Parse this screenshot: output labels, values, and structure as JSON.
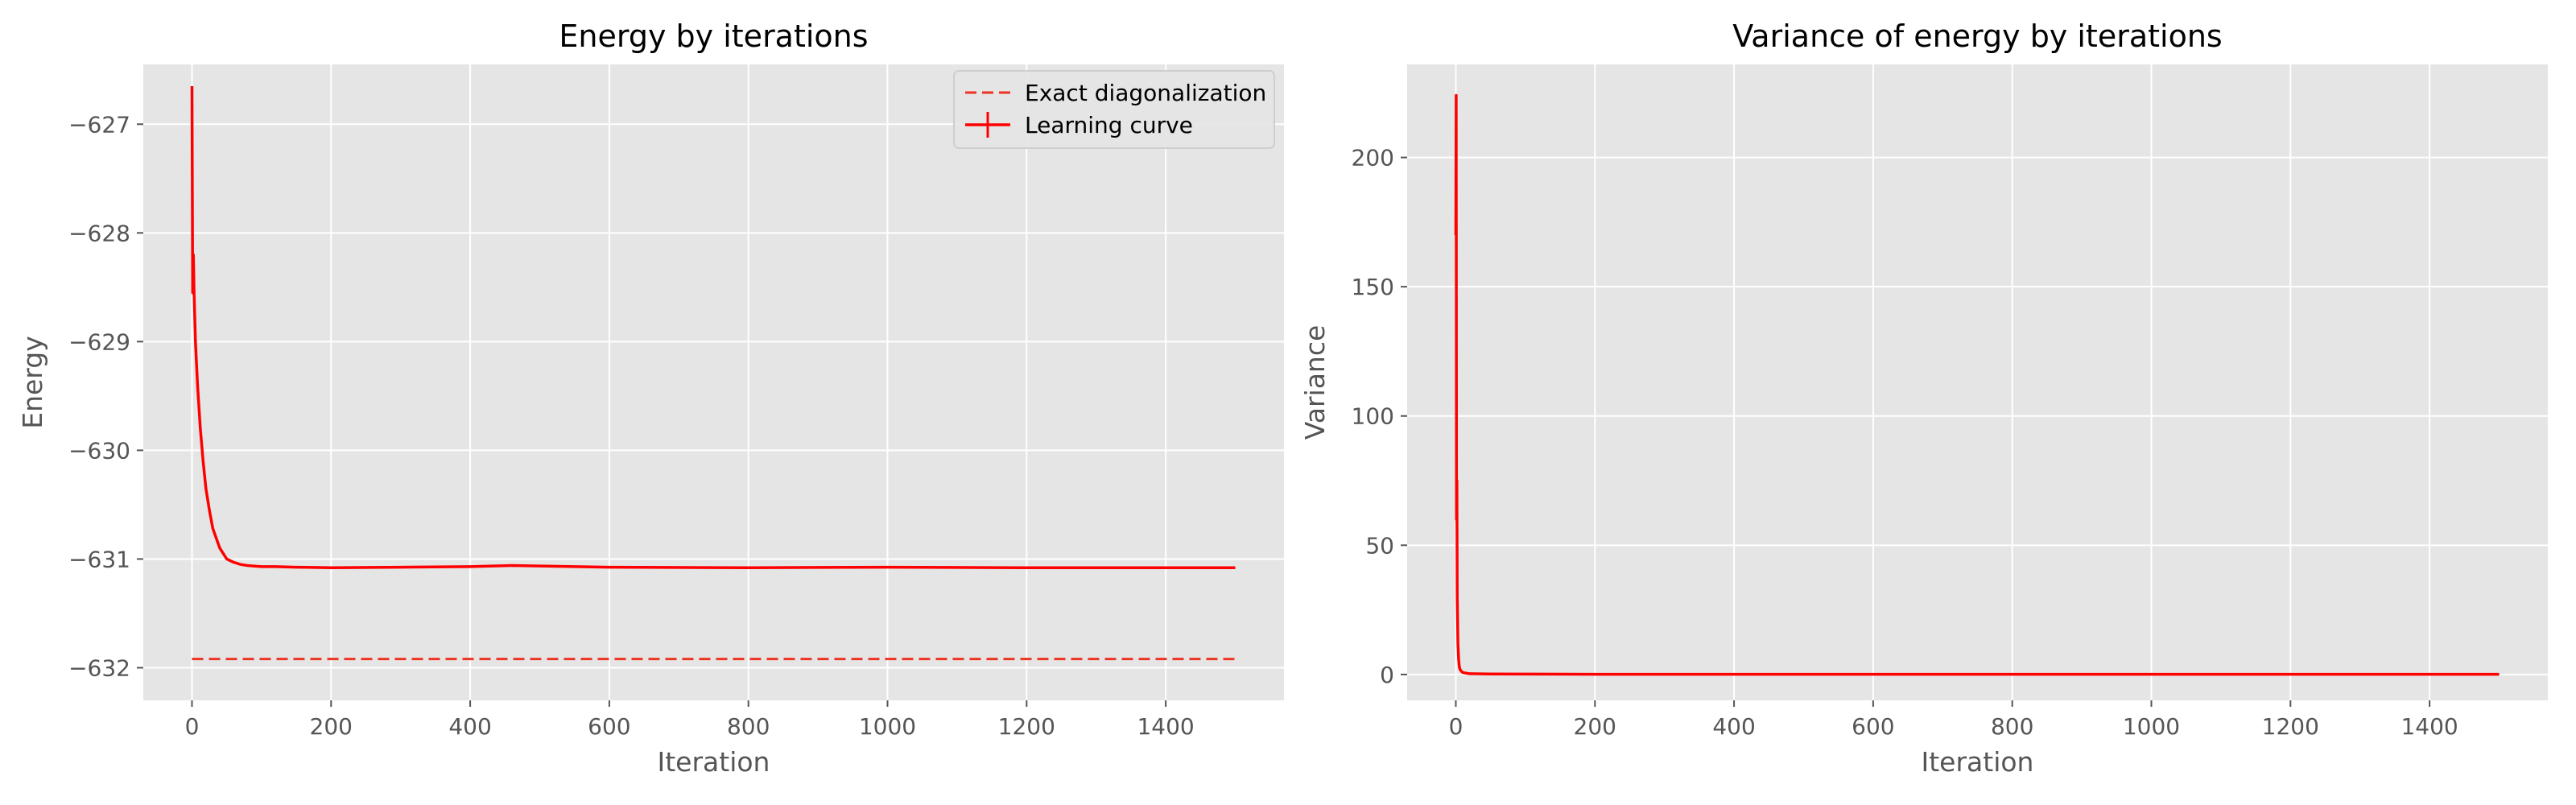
{
  "chart_data": [
    {
      "type": "line",
      "title": "Energy by iterations",
      "xlabel": "Iteration",
      "ylabel": "Energy",
      "xlim": [
        -70,
        1570
      ],
      "ylim": [
        -632.3,
        -626.45
      ],
      "xticks": [
        0,
        200,
        400,
        600,
        800,
        1000,
        1200,
        1400
      ],
      "yticks": [
        -632,
        -631,
        -630,
        -629,
        -628,
        -627
      ],
      "ytick_labels": [
        "−632",
        "−631",
        "−630",
        "−629",
        "−628",
        "−627"
      ],
      "grid": true,
      "legend": "top-right",
      "series": [
        {
          "name": "Exact diagonalization",
          "style": "dashed",
          "color": "#ee3322",
          "x": [
            0,
            1500
          ],
          "y": [
            -631.92,
            -631.92
          ]
        },
        {
          "name": "Learning curve",
          "style": "solid-errorbar",
          "color": "#ff0000",
          "x": [
            0,
            1,
            2,
            3,
            5,
            8,
            12,
            16,
            20,
            25,
            30,
            40,
            50,
            60,
            70,
            80,
            90,
            100,
            120,
            150,
            200,
            300,
            400,
            460,
            600,
            800,
            1000,
            1200,
            1400,
            1500
          ],
          "y": [
            -626.65,
            -628.55,
            -628.2,
            -628.55,
            -629.0,
            -629.4,
            -629.8,
            -630.1,
            -630.35,
            -630.55,
            -630.72,
            -630.9,
            -631.0,
            -631.03,
            -631.05,
            -631.06,
            -631.065,
            -631.07,
            -631.07,
            -631.075,
            -631.08,
            -631.075,
            -631.07,
            -631.06,
            -631.075,
            -631.08,
            -631.075,
            -631.08,
            -631.08,
            -631.08
          ]
        }
      ]
    },
    {
      "type": "line",
      "title": "Variance of energy by iterations",
      "xlabel": "Iteration",
      "ylabel": "Variance",
      "xlim": [
        -70,
        1570
      ],
      "ylim": [
        -10,
        236
      ],
      "xticks": [
        0,
        200,
        400,
        600,
        800,
        1000,
        1200,
        1400
      ],
      "yticks": [
        0,
        50,
        100,
        150,
        200
      ],
      "grid": true,
      "series": [
        {
          "color": "#ff0000",
          "x": [
            0,
            0.5,
            1,
            1.5,
            2,
            3,
            4,
            5,
            6,
            8,
            10,
            15,
            20,
            50,
            100,
            200,
            500,
            1000,
            1500
          ],
          "y": [
            170,
            224,
            60,
            75,
            30,
            12,
            6,
            3,
            2,
            1.2,
            0.8,
            0.5,
            0.3,
            0.2,
            0.15,
            0.1,
            0.1,
            0.1,
            0.1
          ]
        }
      ]
    }
  ]
}
